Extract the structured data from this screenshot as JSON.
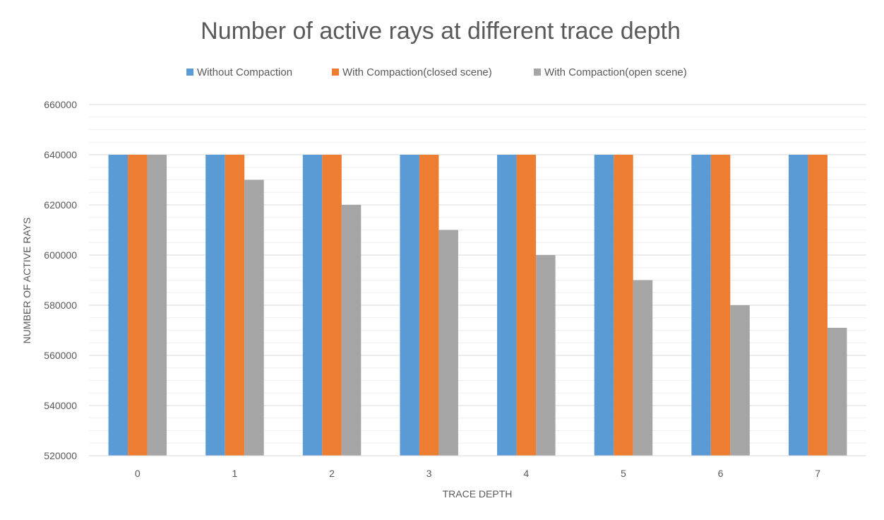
{
  "chart_data": {
    "type": "bar",
    "title": "Number of active rays at different trace depth",
    "xlabel": "TRACE DEPTH",
    "ylabel": "NUMBER OF ACTIVE RAYS",
    "categories": [
      "0",
      "1",
      "2",
      "3",
      "4",
      "5",
      "6",
      "7"
    ],
    "ylim": [
      520000,
      660000
    ],
    "yticks": [
      "520000",
      "540000",
      "560000",
      "580000",
      "600000",
      "620000",
      "640000",
      "660000"
    ],
    "grid": true,
    "legend_position": "top",
    "series": [
      {
        "name": "Without Compaction",
        "color": "#5b9bd5",
        "values": [
          640000,
          640000,
          640000,
          640000,
          640000,
          640000,
          640000,
          640000
        ]
      },
      {
        "name": "With Compaction(closed scene)",
        "color": "#ed7d31",
        "values": [
          640000,
          640000,
          640000,
          640000,
          640000,
          640000,
          640000,
          640000
        ]
      },
      {
        "name": "With Compaction(open scene)",
        "color": "#a5a5a5",
        "values": [
          640000,
          630000,
          620000,
          610000,
          600000,
          590000,
          580000,
          571000
        ]
      }
    ]
  }
}
